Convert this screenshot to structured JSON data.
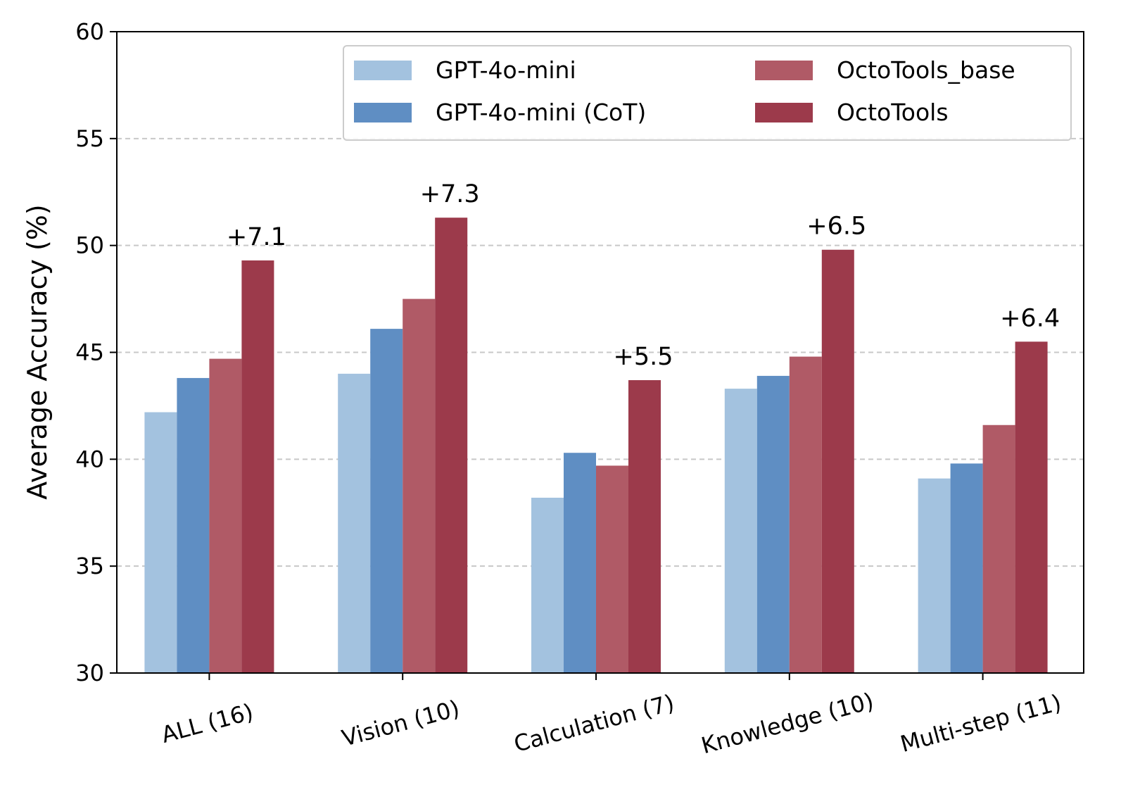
{
  "chart_data": {
    "type": "bar",
    "title": "",
    "xlabel": "",
    "ylabel": "Average Accuracy (%)",
    "ylim": [
      30,
      60
    ],
    "yticks": [
      30,
      35,
      40,
      45,
      50,
      55,
      60
    ],
    "grid": "y-dashed",
    "legend_position": "top-right",
    "categories": [
      "ALL (16)",
      "Vision (10)",
      "Calculation (7)",
      "Knowledge (10)",
      "Multi-step (11)"
    ],
    "series": [
      {
        "name": "GPT-4o-mini",
        "color": "#a3c2df",
        "values": [
          42.2,
          44.0,
          38.2,
          43.3,
          39.1
        ]
      },
      {
        "name": "GPT-4o-mini (CoT)",
        "color": "#5f8ec3",
        "values": [
          43.8,
          46.1,
          40.3,
          43.9,
          39.8
        ]
      },
      {
        "name": "OctoTools_base",
        "color": "#b05a66",
        "values": [
          44.7,
          47.5,
          39.7,
          44.8,
          41.6
        ]
      },
      {
        "name": "OctoTools",
        "color": "#9c3a4b",
        "values": [
          49.3,
          51.3,
          43.7,
          49.8,
          45.5
        ]
      }
    ],
    "annotations": [
      "+7.1",
      "+7.3",
      "+5.5",
      "+6.5",
      "+6.4"
    ]
  }
}
